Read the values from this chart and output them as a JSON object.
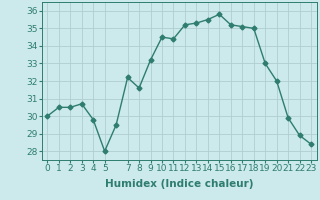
{
  "x": [
    0,
    1,
    2,
    3,
    4,
    5,
    6,
    7,
    8,
    9,
    10,
    11,
    12,
    13,
    14,
    15,
    16,
    17,
    18,
    19,
    20,
    21,
    22,
    23
  ],
  "y": [
    30.0,
    30.5,
    30.5,
    30.7,
    29.8,
    28.0,
    29.5,
    32.2,
    31.6,
    33.2,
    34.5,
    34.4,
    35.2,
    35.3,
    35.5,
    35.8,
    35.2,
    35.1,
    35.0,
    33.0,
    32.0,
    29.9,
    28.9,
    28.4
  ],
  "xlabel": "Humidex (Indice chaleur)",
  "xlim": [
    -0.5,
    23.5
  ],
  "ylim": [
    27.5,
    36.5
  ],
  "yticks": [
    28,
    29,
    30,
    31,
    32,
    33,
    34,
    35,
    36
  ],
  "xticks": [
    0,
    1,
    2,
    3,
    4,
    5,
    7,
    8,
    9,
    10,
    11,
    12,
    13,
    14,
    15,
    16,
    17,
    18,
    19,
    20,
    21,
    22,
    23
  ],
  "line_color": "#2e7d6e",
  "marker": "D",
  "marker_size": 2.5,
  "line_width": 1.0,
  "bg_color": "#cce9eb",
  "grid_color": "#b0ced0",
  "label_fontsize": 7.5,
  "tick_fontsize": 6.5
}
